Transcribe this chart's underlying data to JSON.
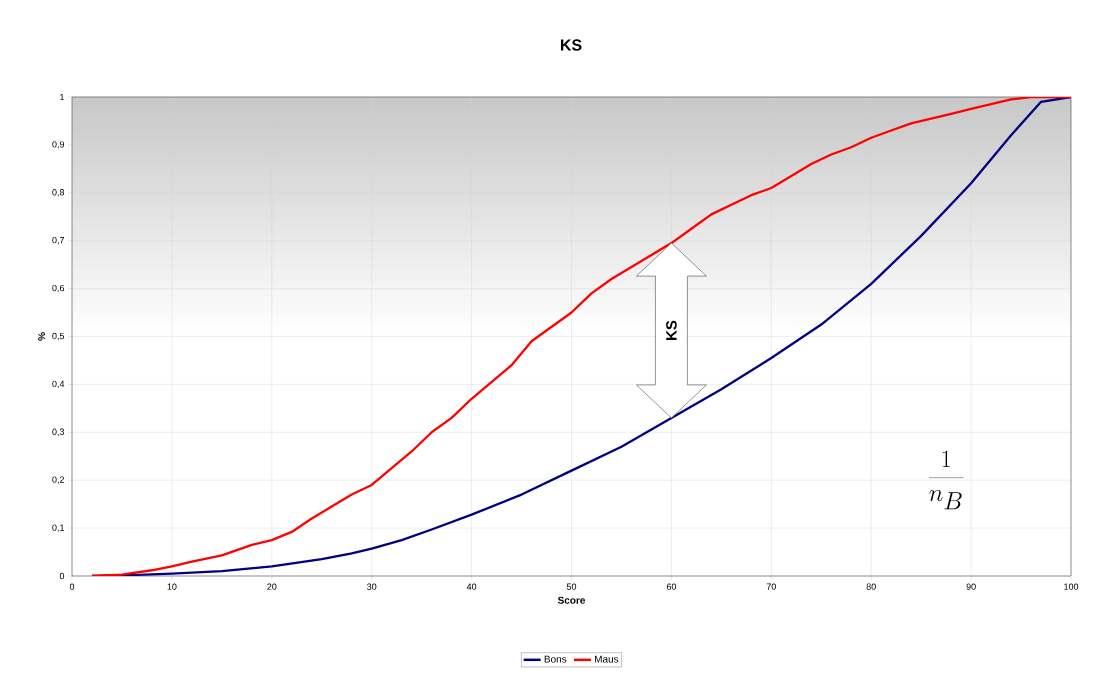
{
  "chart_data": {
    "type": "line",
    "title": "KS",
    "xlabel": "Score",
    "ylabel": "%",
    "xlim": [
      0,
      100
    ],
    "xticks": [
      0,
      10,
      20,
      30,
      40,
      50,
      60,
      70,
      80,
      90,
      100
    ],
    "ylim": [
      0,
      1
    ],
    "yticks": [
      0,
      {
        "value": 0.1,
        "label": "0,1"
      },
      {
        "value": 0.2,
        "label": "0,2"
      },
      {
        "value": 0.3,
        "label": "0,3"
      },
      {
        "value": 0.4,
        "label": "0,4"
      },
      {
        "value": 0.5,
        "label": "0,5"
      },
      {
        "value": 0.6,
        "label": "0,6"
      },
      {
        "value": 0.7,
        "label": "0,7"
      },
      {
        "value": 0.8,
        "label": "0,8"
      },
      {
        "value": 0.9,
        "label": "0,9"
      },
      1
    ],
    "grid": true,
    "legend": "bottom",
    "marker": "none",
    "line_style": "solid",
    "series": [
      {
        "name": "Bons",
        "color": "#000080",
        "x": [
          2,
          6,
          10,
          15,
          20,
          25,
          28,
          30,
          33,
          36,
          40,
          45,
          50,
          55,
          60,
          65,
          70,
          75,
          80,
          85,
          90,
          94,
          97,
          100
        ],
        "values": [
          0,
          0.002,
          0.005,
          0.01,
          0.02,
          0.035,
          0.047,
          0.057,
          0.075,
          0.097,
          0.128,
          0.17,
          0.22,
          0.27,
          0.33,
          0.39,
          0.455,
          0.525,
          0.61,
          0.71,
          0.82,
          0.92,
          0.99,
          1.0
        ]
      },
      {
        "name": "Maus",
        "color": "#ff0000",
        "x": [
          2,
          5,
          8,
          10,
          12,
          15,
          18,
          20,
          22,
          24,
          26,
          28,
          30,
          32,
          34,
          36,
          38,
          40,
          42,
          44,
          46,
          48,
          50,
          52,
          54,
          56,
          58,
          60,
          62,
          64,
          66,
          68,
          70,
          72,
          74,
          76,
          78,
          80,
          82,
          84,
          86,
          88,
          90,
          92,
          94,
          96,
          100
        ],
        "values": [
          0,
          0.003,
          0.012,
          0.02,
          0.03,
          0.043,
          0.065,
          0.075,
          0.092,
          0.12,
          0.145,
          0.17,
          0.19,
          0.225,
          0.26,
          0.3,
          0.33,
          0.37,
          0.405,
          0.44,
          0.49,
          0.52,
          0.55,
          0.59,
          0.62,
          0.645,
          0.67,
          0.695,
          0.725,
          0.755,
          0.775,
          0.795,
          0.81,
          0.835,
          0.86,
          0.88,
          0.895,
          0.915,
          0.93,
          0.945,
          0.955,
          0.965,
          0.975,
          0.985,
          0.995,
          1.0,
          1.0
        ]
      }
    ],
    "annotations": [
      "KS",
      "\\frac{1}{n_B}"
    ]
  }
}
